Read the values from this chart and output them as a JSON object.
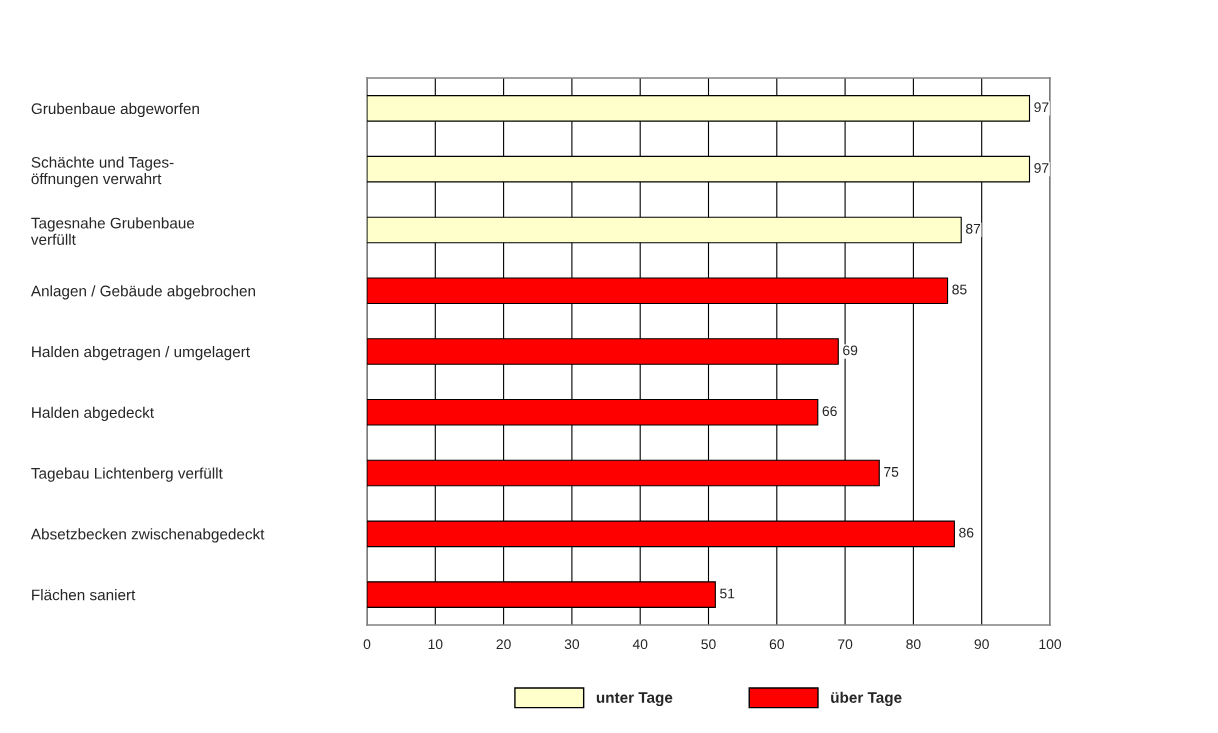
{
  "chart_data": {
    "type": "bar",
    "orientation": "horizontal",
    "categories": [
      "Grubenbaue abgeworfen",
      "Schächte und Tages-\nöffnungen verwahrt",
      "Tagesnahe Grubenbaue\nverfüllt",
      "Anlagen / Gebäude abgebrochen",
      "Halden abgetragen / umgelagert",
      "Halden abgedeckt",
      "Tagebau Lichtenberg verfüllt",
      "Absetzbecken zwischenabgedeckt",
      "Flächen saniert"
    ],
    "series": [
      {
        "name": "unter Tage",
        "color": "#ffffcc",
        "values": [
          97,
          97,
          87,
          null,
          null,
          null,
          null,
          null,
          null
        ]
      },
      {
        "name": "über Tage",
        "color": "#ff0000",
        "values": [
          null,
          null,
          null,
          85,
          69,
          66,
          75,
          86,
          51
        ]
      }
    ],
    "xlim": [
      0,
      100
    ],
    "xticks": [
      0,
      10,
      20,
      30,
      40,
      50,
      60,
      70,
      80,
      90,
      100
    ],
    "grid": "x",
    "legend": "bottom",
    "data_labels": true
  }
}
